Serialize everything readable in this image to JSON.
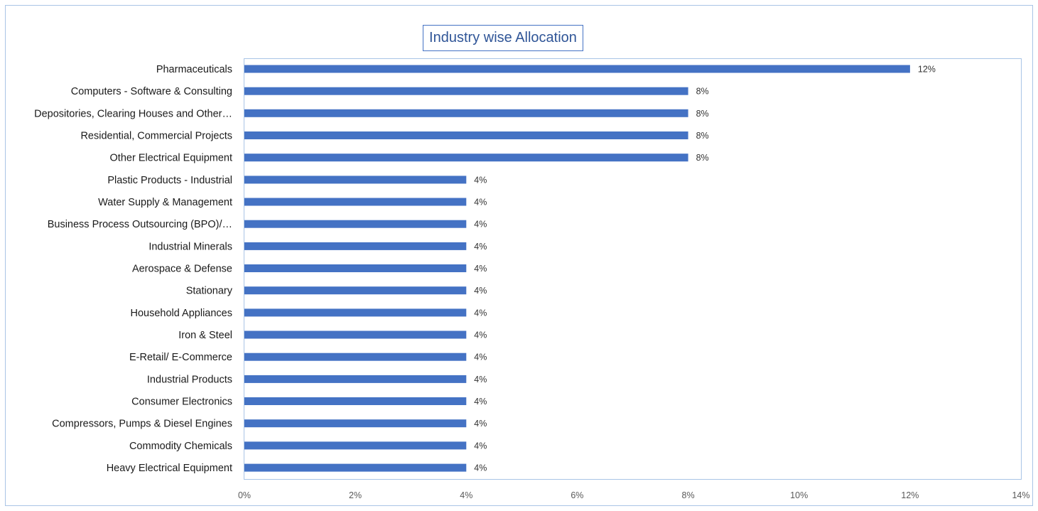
{
  "chart_data": {
    "type": "bar",
    "orientation": "horizontal",
    "title": "Industry wise Allocation",
    "categories": [
      "Pharmaceuticals",
      "Computers - Software & Consulting",
      "Depositories, Clearing Houses and Other…",
      "Residential, Commercial Projects",
      "Other Electrical Equipment",
      "Plastic Products - Industrial",
      "Water Supply & Management",
      "Business Process Outsourcing (BPO)/…",
      "Industrial Minerals",
      "Aerospace & Defense",
      "Stationary",
      "Household Appliances",
      "Iron & Steel",
      "E-Retail/ E-Commerce",
      "Industrial Products",
      "Consumer Electronics",
      "Compressors, Pumps & Diesel Engines",
      "Commodity Chemicals",
      "Heavy Electrical Equipment"
    ],
    "values": [
      12,
      8,
      8,
      8,
      8,
      4,
      4,
      4,
      4,
      4,
      4,
      4,
      4,
      4,
      4,
      4,
      4,
      4,
      4
    ],
    "value_labels": [
      "12%",
      "8%",
      "8%",
      "8%",
      "8%",
      "4%",
      "4%",
      "4%",
      "4%",
      "4%",
      "4%",
      "4%",
      "4%",
      "4%",
      "4%",
      "4%",
      "4%",
      "4%",
      "4%"
    ],
    "x_ticks": [
      0,
      2,
      4,
      6,
      8,
      10,
      12,
      14
    ],
    "x_tick_labels": [
      "0%",
      "2%",
      "4%",
      "6%",
      "8%",
      "10%",
      "12%",
      "14%"
    ],
    "xlim": [
      0,
      14
    ],
    "xlabel": "",
    "ylabel": "",
    "grid": false,
    "legend": "none",
    "bar_color": "#4472c4"
  }
}
